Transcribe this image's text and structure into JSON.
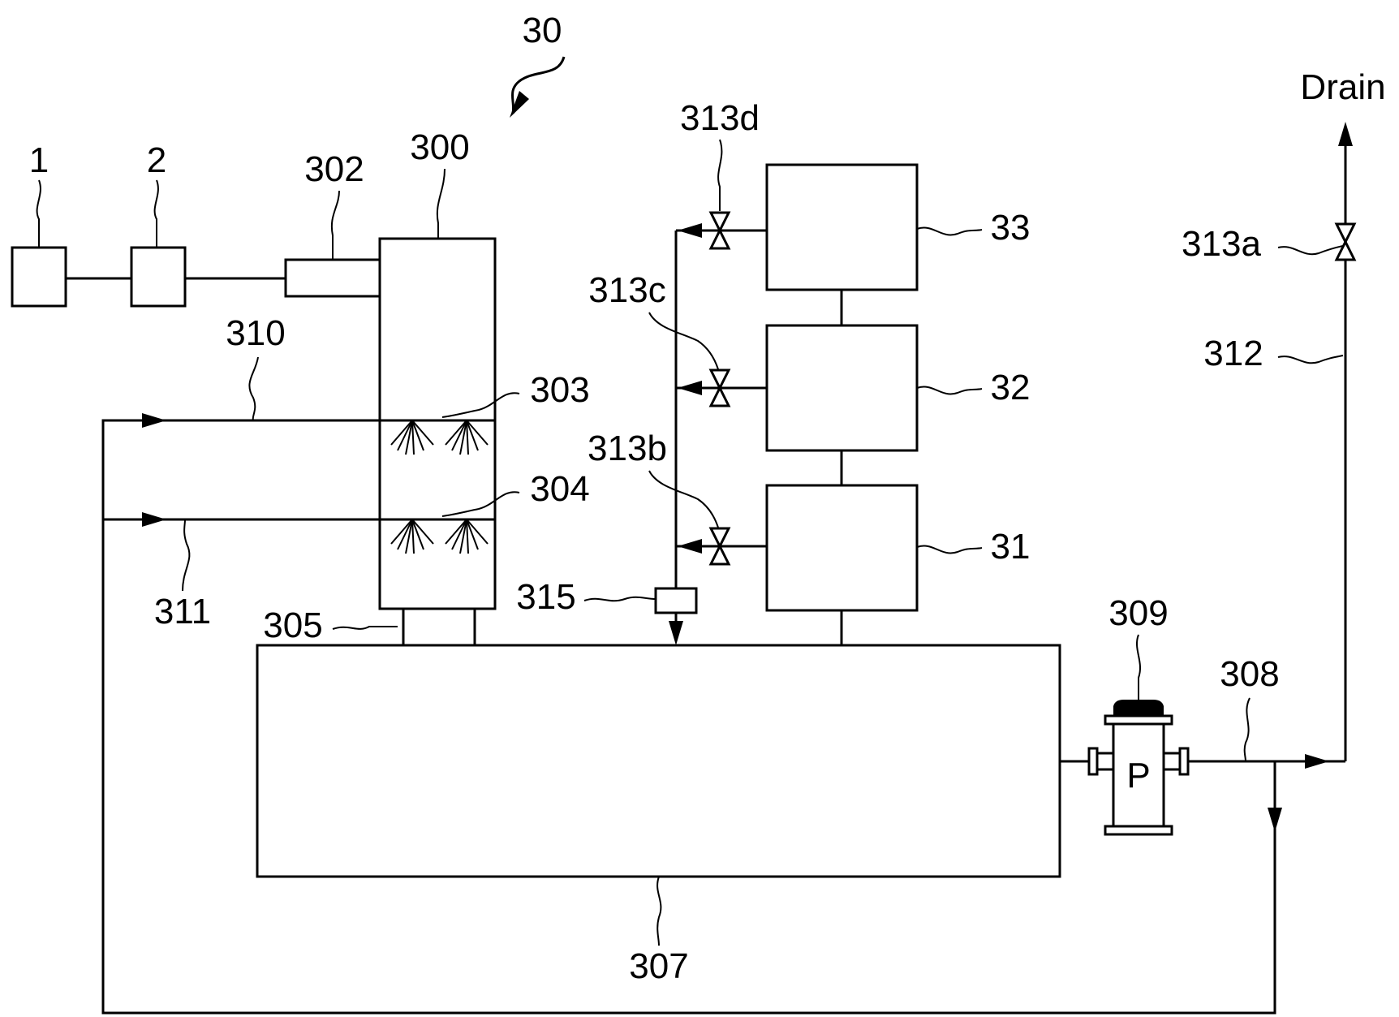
{
  "labels": {
    "system": "30",
    "unit_1": "1",
    "unit_2": "2",
    "inlet_302": "302",
    "tower_300": "300",
    "nozzle_303": "303",
    "nozzle_304": "304",
    "line_310": "310",
    "line_311": "311",
    "outlet_305": "305",
    "tank_307": "307",
    "pump_309": "309",
    "pump_symbol": "P",
    "line_308": "308",
    "line_312": "312",
    "valve_313a": "313a",
    "valve_313b": "313b",
    "valve_313c": "313c",
    "valve_313d": "313d",
    "sensor_315": "315",
    "unit_31": "31",
    "unit_32": "32",
    "unit_33": "33",
    "drain": "Drain"
  }
}
